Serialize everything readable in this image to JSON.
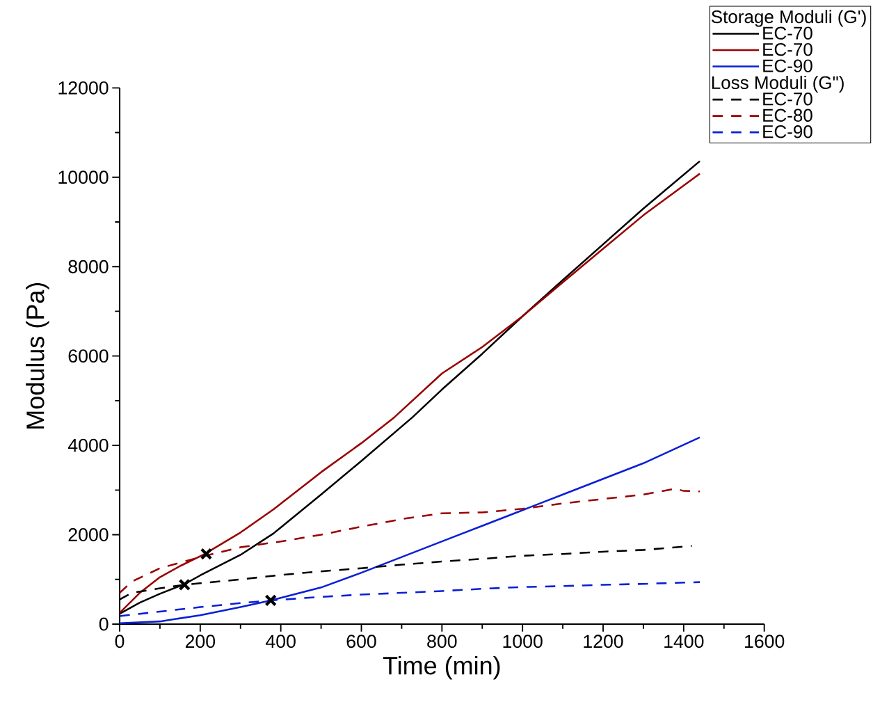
{
  "chart_data": {
    "type": "line",
    "xlabel": "Time (min)",
    "ylabel": "Modulus (Pa)",
    "legend_title": [
      "Storage Moduli (G')",
      "Loss Moduli (G\")"
    ],
    "legend": "top right",
    "xlim": [
      0,
      1600
    ],
    "ylim": [
      0,
      12000
    ],
    "xticks": [
      0,
      200,
      400,
      600,
      800,
      1000,
      1200,
      1400,
      1600
    ],
    "yticks": [
      0,
      2000,
      4000,
      6000,
      8000,
      10000,
      12000
    ],
    "series": [
      {
        "name": "EC-70",
        "color": "#000000",
        "line_style": "solid",
        "x": [
          0,
          50,
          100,
          160,
          200,
          300,
          382,
          500,
          600,
          727,
          800,
          900,
          1000,
          1100,
          1200,
          1300,
          1440
        ],
        "values": [
          230,
          480,
          680,
          890,
          1090,
          1550,
          2030,
          2900,
          3650,
          4630,
          5250,
          6050,
          6890,
          7700,
          8500,
          9300,
          10360
        ]
      },
      {
        "name": "EC-70",
        "color": "#990000",
        "line_style": "solid",
        "x": [
          0,
          50,
          100,
          150,
          209,
          300,
          382,
          500,
          600,
          682,
          800,
          900,
          1000,
          1100,
          1200,
          1300,
          1440
        ],
        "values": [
          250,
          700,
          1050,
          1300,
          1560,
          2050,
          2570,
          3400,
          4050,
          4630,
          5610,
          6200,
          6890,
          7650,
          8400,
          9150,
          10080
        ]
      },
      {
        "name": "EC-90",
        "color": "#0a1fd6",
        "line_style": "solid",
        "x": [
          0,
          100,
          200,
          300,
          375,
          500,
          600,
          700,
          800,
          900,
          1000,
          1100,
          1200,
          1300,
          1440
        ],
        "values": [
          20,
          60,
          200,
          380,
          530,
          820,
          1150,
          1500,
          1850,
          2200,
          2550,
          2900,
          3250,
          3600,
          4180
        ]
      },
      {
        "name": "EC-70",
        "color": "#000000",
        "line_style": "dashed",
        "x": [
          0,
          30,
          100,
          160,
          300,
          400,
          500,
          600,
          700,
          800,
          900,
          1000,
          1100,
          1200,
          1300,
          1420
        ],
        "values": [
          550,
          700,
          800,
          880,
          1000,
          1100,
          1180,
          1250,
          1330,
          1400,
          1460,
          1530,
          1570,
          1620,
          1660,
          1750
        ]
      },
      {
        "name": "EC-80",
        "color": "#990000",
        "line_style": "dashed",
        "x": [
          0,
          30,
          100,
          200,
          300,
          400,
          500,
          600,
          700,
          800,
          900,
          1000,
          1100,
          1200,
          1300,
          1380,
          1400,
          1440
        ],
        "values": [
          700,
          950,
          1250,
          1500,
          1720,
          1850,
          2000,
          2180,
          2350,
          2480,
          2500,
          2580,
          2700,
          2800,
          2900,
          3030,
          2980,
          2970
        ]
      },
      {
        "name": "EC-90",
        "color": "#0a1fd6",
        "line_style": "dashed",
        "x": [
          0,
          100,
          200,
          300,
          375,
          500,
          600,
          700,
          800,
          900,
          1000,
          1100,
          1200,
          1300,
          1440
        ],
        "values": [
          180,
          280,
          380,
          470,
          530,
          610,
          660,
          700,
          740,
          790,
          830,
          850,
          880,
          900,
          940
        ]
      },
      {
        "type": "scatter",
        "marker": "cross",
        "color": "#000000",
        "x": [
          161,
          215,
          375
        ],
        "values": [
          880,
          1570,
          530
        ]
      }
    ]
  }
}
